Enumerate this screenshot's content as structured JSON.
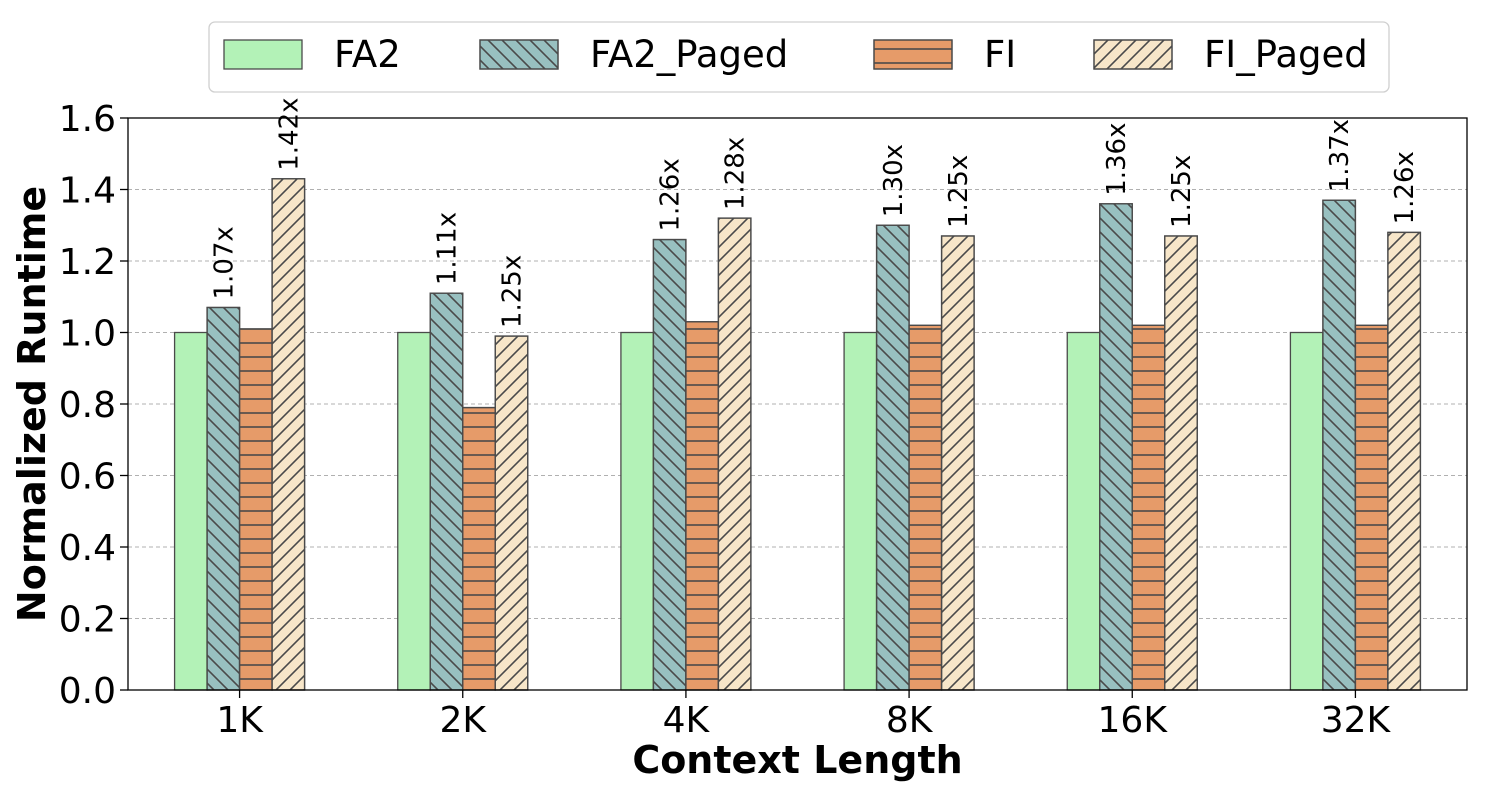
{
  "chart_data": {
    "type": "bar",
    "xlabel": "Context Length",
    "ylabel": "Normalized Runtime",
    "categories": [
      "1K",
      "2K",
      "4K",
      "8K",
      "16K",
      "32K"
    ],
    "ylim": [
      0.0,
      1.6
    ],
    "yticks": [
      "0.0",
      "0.2",
      "0.4",
      "0.6",
      "0.8",
      "1.0",
      "1.2",
      "1.4",
      "1.6"
    ],
    "grid": "horizontal dashed",
    "legend_position": "top-center",
    "series": [
      {
        "name": "FA2",
        "values": [
          1.0,
          1.0,
          1.0,
          1.0,
          1.0,
          1.0
        ],
        "color": "#b3f2b7",
        "hatch": "none",
        "labels": []
      },
      {
        "name": "FA2_Paged",
        "values": [
          1.07,
          1.11,
          1.26,
          1.3,
          1.36,
          1.37
        ],
        "color": "#98c0c0",
        "hatch": "backslash",
        "labels": [
          "1.07x",
          "1.11x",
          "1.26x",
          "1.30x",
          "1.36x",
          "1.37x"
        ]
      },
      {
        "name": "FI",
        "values": [
          1.01,
          0.79,
          1.03,
          1.02,
          1.02,
          1.02
        ],
        "color": "#e69b69",
        "hatch": "horizontal",
        "labels": []
      },
      {
        "name": "FI_Paged",
        "values": [
          1.43,
          0.99,
          1.32,
          1.27,
          1.27,
          1.28
        ],
        "color": "#f7e6c9",
        "hatch": "slash",
        "labels": [
          "1.42x",
          "1.25x",
          "1.28x",
          "1.25x",
          "1.25x",
          "1.26x"
        ]
      }
    ]
  }
}
